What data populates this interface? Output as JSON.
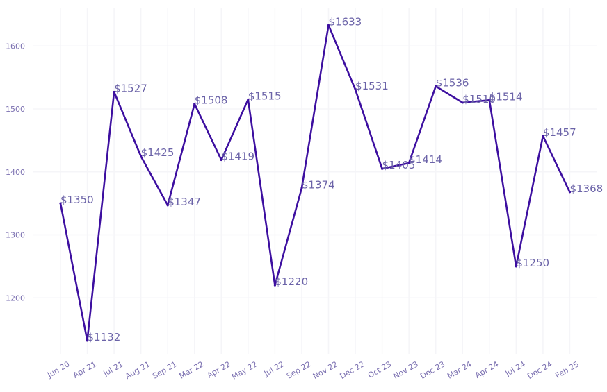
{
  "chart_data": {
    "type": "line",
    "title": "",
    "xlabel": "",
    "ylabel": "",
    "categories": [
      "Jun 20",
      "Apr 21",
      "Jul 21",
      "Aug 21",
      "Sep 21",
      "Mar 22",
      "Apr 22",
      "May 22",
      "Jul 22",
      "Sep 22",
      "Nov 22",
      "Dec 22",
      "Oct 23",
      "Nov 23",
      "Dec 23",
      "Mar 24",
      "Apr 24",
      "Jul 24",
      "Dec 24",
      "Feb 25"
    ],
    "values": [
      1350,
      1132,
      1527,
      1425,
      1347,
      1508,
      1419,
      1515,
      1220,
      1374,
      1633,
      1531,
      1405,
      1414,
      1536,
      1510,
      1514,
      1250,
      1457,
      1368
    ],
    "data_labels": [
      "$1350",
      "$1132",
      "$1527",
      "$1425",
      "$1347",
      "$1508",
      "$1419",
      "$1515",
      "$1220",
      "$1374",
      "$1633",
      "$1531",
      "$1405",
      "$1414",
      "$1536",
      "$1510",
      "$1514",
      "$1250",
      "$1457",
      "$1368"
    ],
    "yticks": [
      1200,
      1300,
      1400,
      1500,
      1600
    ],
    "ylim": [
      1112,
      1653
    ],
    "grid": true,
    "line_color": "#3d0fa0",
    "label_color": "#6b63a8",
    "tick_color": "#7a6fb0",
    "grid_color": "#f5f5f8"
  }
}
